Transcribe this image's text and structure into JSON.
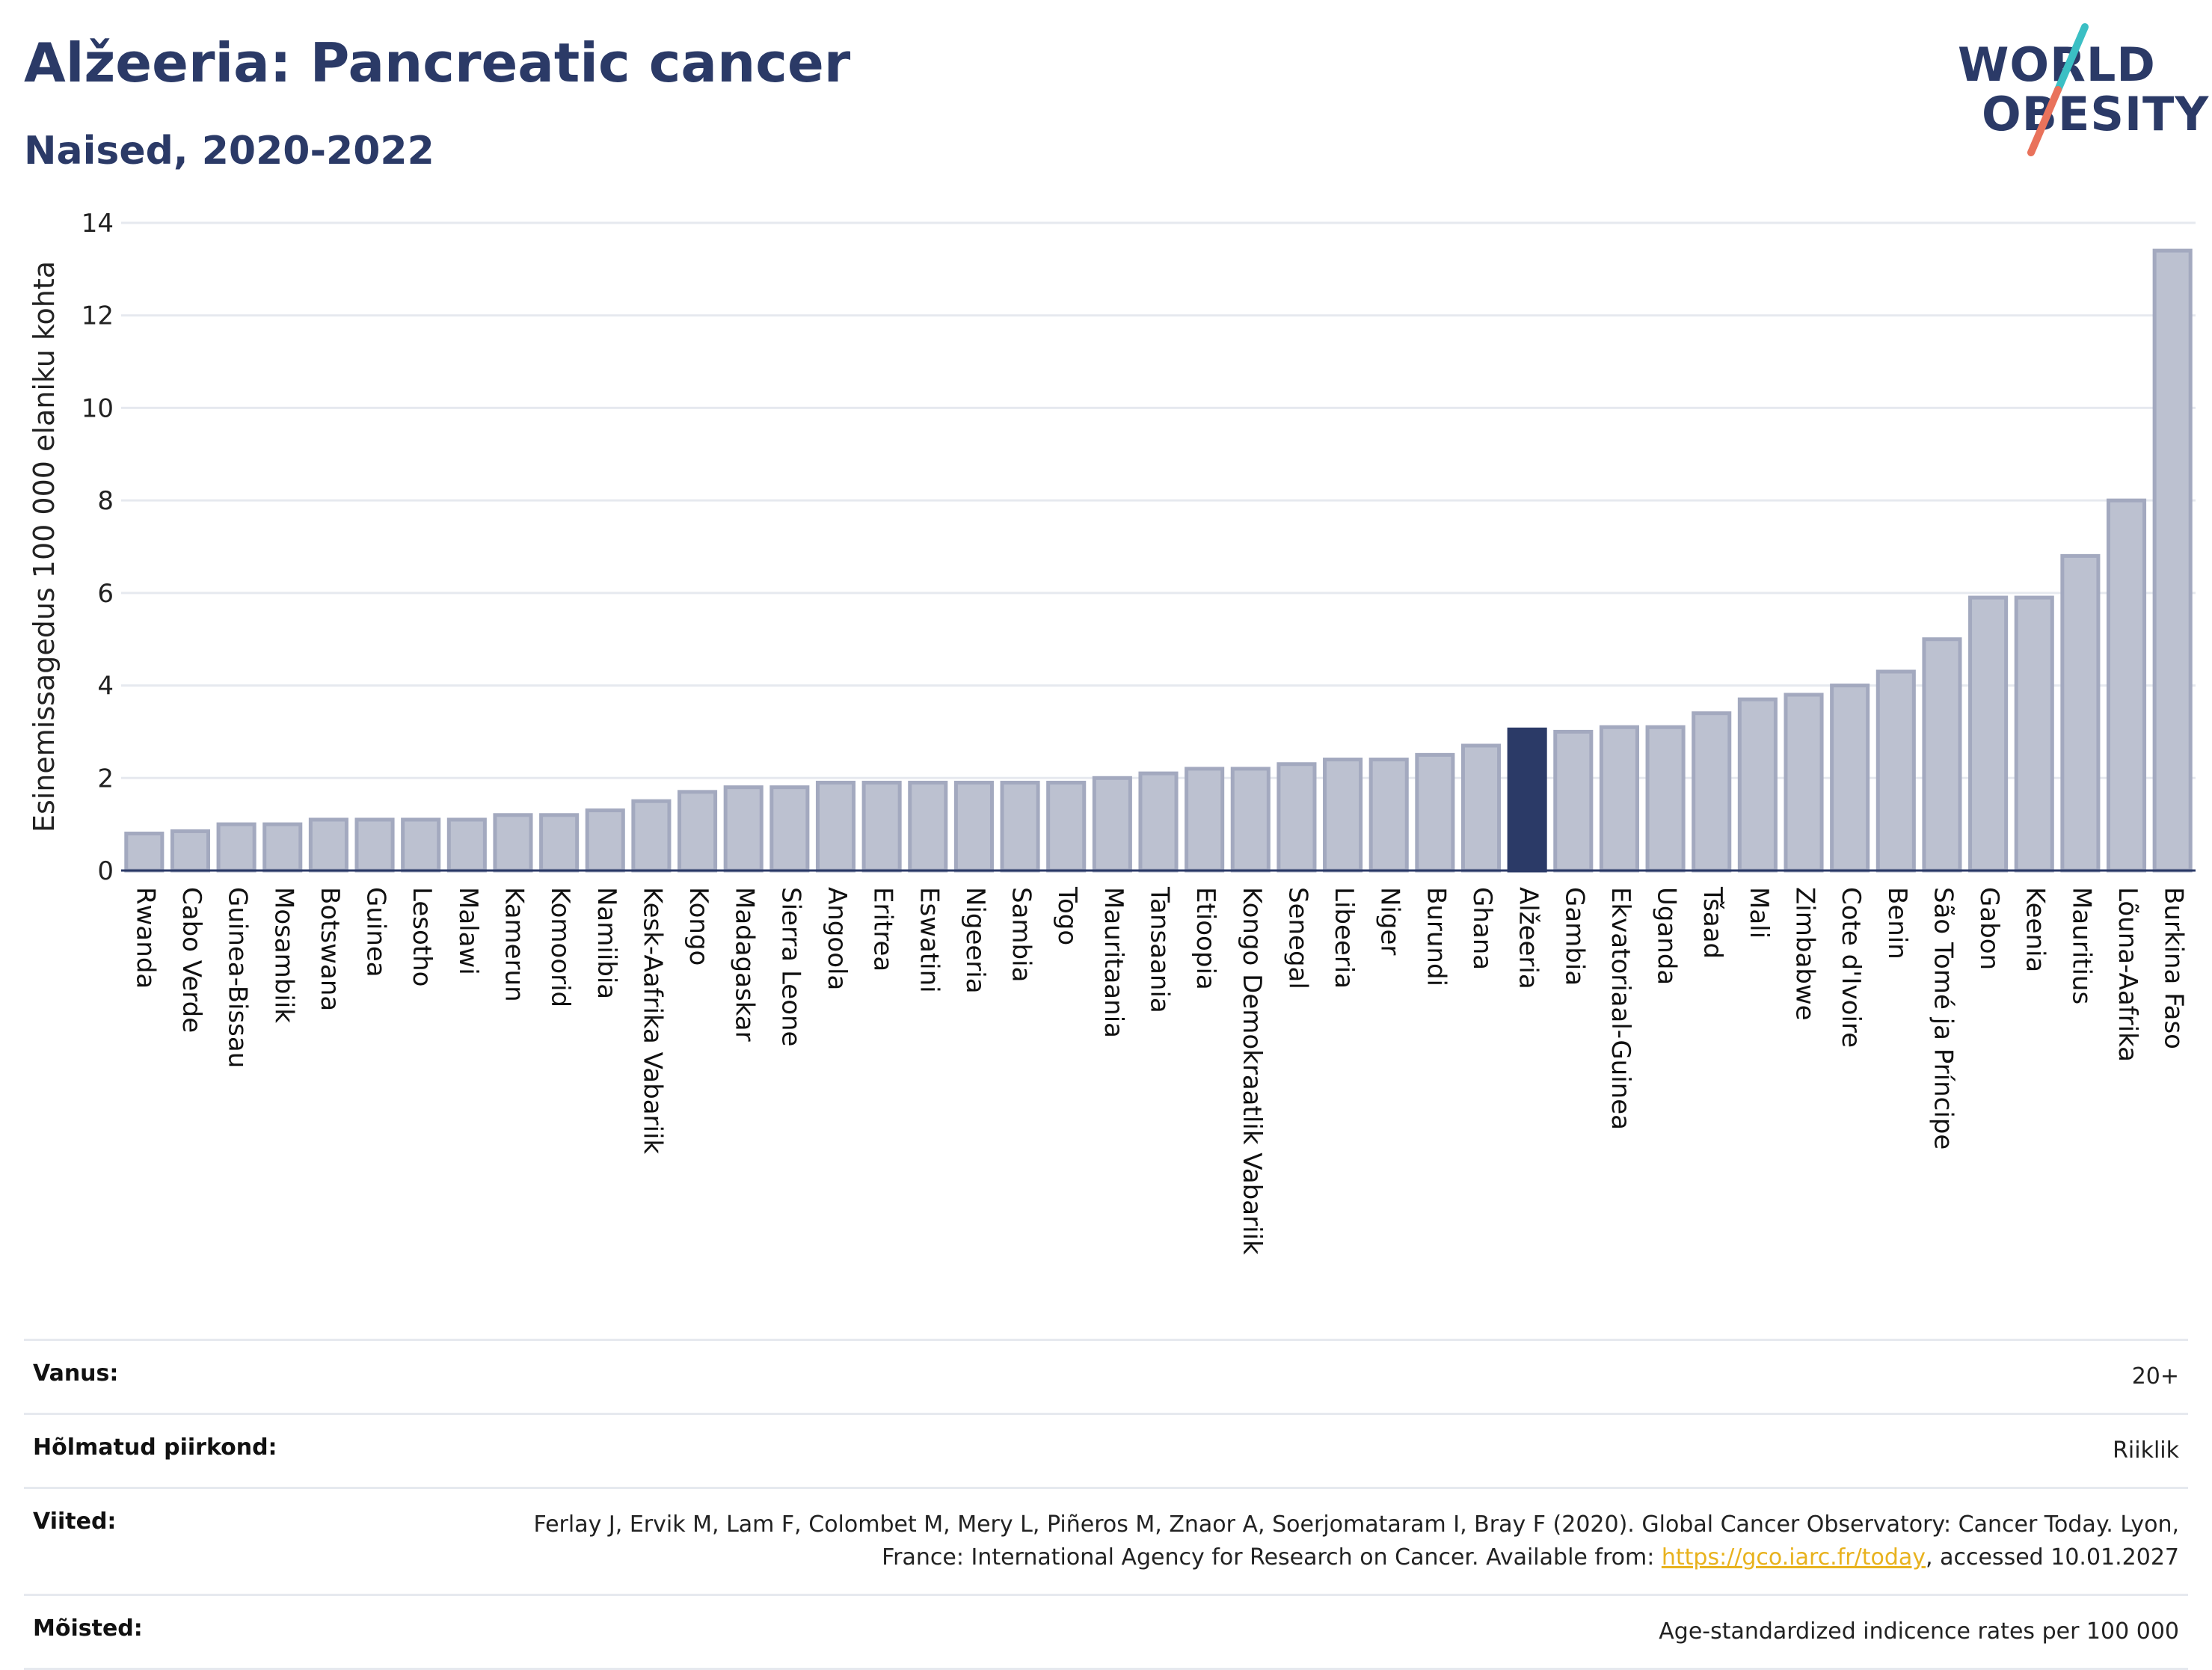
{
  "header": {
    "title": "Alžeeria: Pancreatic cancer",
    "subtitle": "Naised, 2020-2022"
  },
  "logo": {
    "line1": "WORLD",
    "line2": "OBESITY",
    "accent_teal": "#3bbfc4",
    "accent_coral": "#e9725b"
  },
  "colors": {
    "bar": "#bcc1d0",
    "bar_border": "#a3a9bf",
    "bar_highlight": "#2b3a67",
    "text": "#2b3a67"
  },
  "chart_data": {
    "type": "bar",
    "ylabel": "Esinemissagedus 100 000 elaniku kohta",
    "ylim": [
      0,
      14
    ],
    "yticks": [
      0,
      2,
      4,
      6,
      8,
      10,
      12,
      14
    ],
    "grid": true,
    "highlight": "Alžeeria",
    "categories": [
      "Rwanda",
      "Cabo Verde",
      "Guinea-Bissau",
      "Mosambiik",
      "Botswana",
      "Guinea",
      "Lesotho",
      "Malawi",
      "Kamerun",
      "Komoorid",
      "Namiibia",
      "Kesk-Aafrika Vabariik",
      "Kongo",
      "Madagaskar",
      "Sierra Leone",
      "Angoola",
      "Eritrea",
      "Eswatini",
      "Nigeeria",
      "Sambia",
      "Togo",
      "Mauritaania",
      "Tansaania",
      "Etioopia",
      "Kongo Demokraatlik Vabariik",
      "Senegal",
      "Libeeria",
      "Niger",
      "Burundi",
      "Ghana",
      "Alžeeria",
      "Gambia",
      "Ekvatoriaal-Guinea",
      "Uganda",
      "Tšaad",
      "Mali",
      "Zimbabwe",
      "Cote d'Ivoire",
      "Benin",
      "São Tomé ja Príncipe",
      "Gabon",
      "Keenia",
      "Mauritius",
      "Lõuna-Aafrika",
      "Burkina Faso"
    ],
    "values": [
      0.8,
      0.85,
      1.0,
      1.0,
      1.1,
      1.1,
      1.1,
      1.1,
      1.2,
      1.2,
      1.3,
      1.5,
      1.7,
      1.8,
      1.8,
      1.9,
      1.9,
      1.9,
      1.9,
      1.9,
      1.9,
      2.0,
      2.1,
      2.2,
      2.2,
      2.3,
      2.4,
      2.4,
      2.5,
      2.7,
      3.05,
      3.0,
      3.1,
      3.1,
      3.4,
      3.7,
      3.8,
      4.0,
      4.3,
      5.0,
      5.9,
      5.9,
      6.8,
      8.0,
      13.4
    ]
  },
  "info_table": {
    "age_label": "Vanus:",
    "age_value": "20+",
    "region_label": "Hõlmatud piirkond:",
    "region_value": "Riiklik",
    "refs_label": "Viited:",
    "refs_text_1": "Ferlay J, Ervik M, Lam F, Colombet M, Mery L, Piñeros M, Znaor A, Soerjomataram I, Bray F (2020). Global Cancer Observatory: Cancer Today. Lyon, France: International Agency for Research on Cancer. Available from: ",
    "refs_link": "https://gco.iarc.fr/today",
    "refs_text_2": ", accessed 10.01.2027",
    "def_label": "Mõisted:",
    "def_value": "Age-standardized indicence rates per 100 000"
  }
}
